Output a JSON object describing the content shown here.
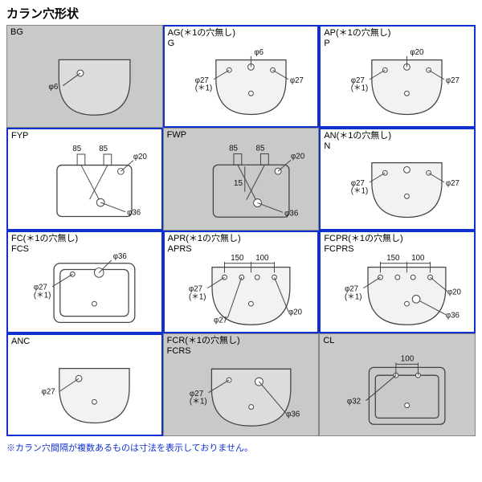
{
  "title": "カラン穴形状",
  "footer": "※カラン穴間隔が複数あるものは寸法を表示しておりません。",
  "cells": [
    {
      "code1": "BG",
      "code2": "",
      "gray": true,
      "hl": false,
      "type": "basin1",
      "dims": {
        "left": "φ6"
      }
    },
    {
      "code1": "AG(＊1の穴無し)",
      "code2": "G",
      "gray": false,
      "hl": true,
      "type": "basin3",
      "dims": {
        "top": "φ6",
        "lcall": "φ27\n(＊1)",
        "rcall": "φ27"
      }
    },
    {
      "code1": "AP(＊1の穴無し)",
      "code2": "P",
      "gray": false,
      "hl": true,
      "type": "basin3",
      "dims": {
        "top": "φ20",
        "lcall": "φ27\n(＊1)",
        "rcall": "φ27"
      }
    },
    {
      "code1": "FYP",
      "code2": "",
      "gray": false,
      "hl": true,
      "type": "rectTwin",
      "dims": {
        "sp1": "85",
        "sp2": "85",
        "top": "φ20",
        "low": "φ36"
      }
    },
    {
      "code1": "FWP",
      "code2": "",
      "gray": true,
      "hl": false,
      "type": "rectTwinDeep",
      "dims": {
        "sp1": "85",
        "sp2": "85",
        "top": "φ20",
        "low": "φ36",
        "depth": "15"
      }
    },
    {
      "code1": "AN(＊1の穴無し)",
      "code2": "N",
      "gray": false,
      "hl": true,
      "type": "basin2",
      "dims": {
        "lcall": "φ27\n(＊1)",
        "rcall": "φ27"
      }
    },
    {
      "code1": "FC(＊1の穴無し)",
      "code2": "FCS",
      "gray": false,
      "hl": true,
      "type": "rectBig",
      "dims": {
        "top": "φ36",
        "lcall": "φ27\n(＊1)"
      }
    },
    {
      "code1": "APR(＊1の穴無し)",
      "code2": "APRS",
      "gray": false,
      "hl": true,
      "type": "basinQuad",
      "dims": {
        "sp1": "150",
        "sp2": "100",
        "lcall": "φ27\n(＊1)",
        "bl": "φ27",
        "br": "φ20"
      }
    },
    {
      "code1": "FCPR(＊1の穴無し)",
      "code2": "FCPRS",
      "gray": false,
      "hl": true,
      "type": "basinQuad2",
      "dims": {
        "sp1": "150",
        "sp2": "100",
        "lcall": "φ27\n(＊1)",
        "br1": "φ20",
        "br2": "φ36"
      }
    },
    {
      "code1": "ANC",
      "code2": "",
      "gray": false,
      "hl": true,
      "type": "basinSingle",
      "dims": {
        "lcall": "φ27"
      }
    },
    {
      "code1": "FCR(＊1の穴無し)",
      "code2": "FCRS",
      "gray": true,
      "hl": false,
      "type": "rectMid",
      "dims": {
        "lcall": "φ27\n(＊1)",
        "low": "φ36"
      }
    },
    {
      "code1": "CL",
      "code2": "",
      "gray": true,
      "hl": false,
      "type": "rectCL",
      "dims": {
        "sp": "100",
        "lcall": "φ32"
      }
    }
  ],
  "colors": {
    "hl": "#1030d0",
    "gray": "#c9c9c9"
  }
}
